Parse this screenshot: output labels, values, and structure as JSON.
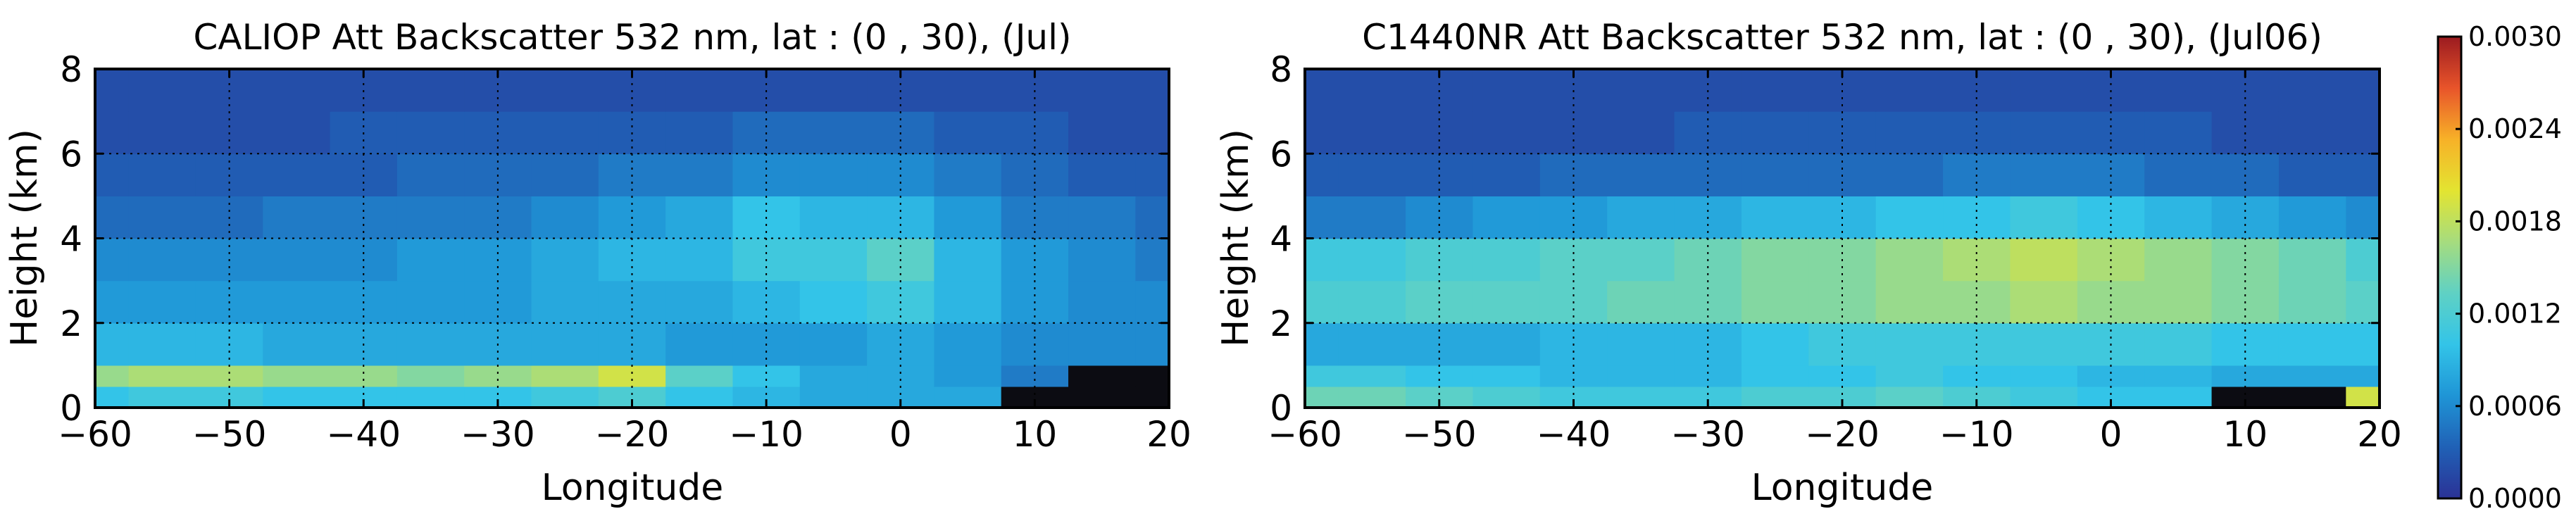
{
  "chart_data": [
    {
      "type": "heatmap",
      "title": "CALIOP Att Backscatter 532 nm, lat : (0 , 30), (Jul)",
      "xlabel": "Longitude",
      "ylabel": "Height (km)",
      "xlim": [
        -60,
        20
      ],
      "ylim": [
        0,
        8
      ],
      "xticks": [
        -60,
        -50,
        -40,
        -30,
        -20,
        -10,
        0,
        10,
        20
      ],
      "xtick_labels": [
        "−60",
        "−50",
        "−40",
        "−30",
        "−20",
        "−10",
        "0",
        "10",
        "20"
      ],
      "yticks": [
        0,
        2,
        4,
        6,
        8
      ],
      "ytick_labels": [
        "0",
        "2",
        "4",
        "6",
        "8"
      ],
      "grid": true,
      "x": [
        -60,
        -55,
        -50,
        -45,
        -40,
        -35,
        -30,
        -25,
        -20,
        -15,
        -10,
        -5,
        0,
        5,
        10,
        15,
        20
      ],
      "y": [
        0.25,
        0.75,
        1.5,
        2.5,
        3.5,
        4.5,
        5.5,
        6.5,
        7.5
      ],
      "z": [
        [
          0.001,
          0.0011,
          0.0011,
          0.001,
          0.001,
          0.001,
          0.001,
          0.0011,
          0.0012,
          0.001,
          0.0009,
          0.0008,
          0.0008,
          0.0008,
          0.0001,
          0.0001,
          0.0001
        ],
        [
          0.0016,
          0.0017,
          0.0017,
          0.0016,
          0.0016,
          0.0015,
          0.0016,
          0.0017,
          0.0019,
          0.0013,
          0.001,
          0.0008,
          0.0008,
          0.0007,
          0.0005,
          0.0001,
          0.0001
        ],
        [
          0.0009,
          0.0009,
          0.0009,
          0.0008,
          0.0008,
          0.0008,
          0.0008,
          0.0008,
          0.0008,
          0.0007,
          0.0007,
          0.0007,
          0.0008,
          0.0007,
          0.0006,
          0.0006,
          0.0006
        ],
        [
          0.0007,
          0.0007,
          0.0007,
          0.0007,
          0.0007,
          0.0007,
          0.0007,
          0.0008,
          0.0008,
          0.0008,
          0.0009,
          0.001,
          0.0011,
          0.0009,
          0.0007,
          0.0006,
          0.0006
        ],
        [
          0.0006,
          0.0006,
          0.0006,
          0.0006,
          0.0006,
          0.0007,
          0.0007,
          0.0008,
          0.0009,
          0.0009,
          0.0011,
          0.0011,
          0.0013,
          0.0009,
          0.0007,
          0.0006,
          0.0005
        ],
        [
          0.0004,
          0.0004,
          0.0004,
          0.0005,
          0.0005,
          0.0005,
          0.0005,
          0.0006,
          0.0007,
          0.0008,
          0.001,
          0.0009,
          0.0009,
          0.0007,
          0.0005,
          0.0005,
          0.0004
        ],
        [
          0.0003,
          0.0003,
          0.0003,
          0.0003,
          0.0003,
          0.0004,
          0.0004,
          0.0004,
          0.0005,
          0.0005,
          0.0006,
          0.0006,
          0.0006,
          0.0005,
          0.0004,
          0.0003,
          0.0003
        ],
        [
          0.0002,
          0.0002,
          0.0002,
          0.0002,
          0.0003,
          0.0003,
          0.0003,
          0.0003,
          0.0003,
          0.0003,
          0.0004,
          0.0004,
          0.0004,
          0.0003,
          0.0003,
          0.0002,
          0.0002
        ],
        [
          0.0002,
          0.0002,
          0.0002,
          0.0002,
          0.0002,
          0.0002,
          0.0002,
          0.0002,
          0.0002,
          0.0002,
          0.0002,
          0.0002,
          0.0002,
          0.0002,
          0.0002,
          0.0002,
          0.0002
        ]
      ]
    },
    {
      "type": "heatmap",
      "title": "C1440NR Att Backscatter 532 nm, lat : (0 , 30), (Jul06)",
      "xlabel": "Longitude",
      "ylabel": "Height (km)",
      "xlim": [
        -60,
        20
      ],
      "ylim": [
        0,
        8
      ],
      "xticks": [
        -60,
        -50,
        -40,
        -30,
        -20,
        -10,
        0,
        10,
        20
      ],
      "xtick_labels": [
        "−60",
        "−50",
        "−40",
        "−30",
        "−20",
        "−10",
        "0",
        "10",
        "20"
      ],
      "yticks": [
        0,
        2,
        4,
        6,
        8
      ],
      "ytick_labels": [
        "0",
        "2",
        "4",
        "6",
        "8"
      ],
      "grid": true,
      "x": [
        -60,
        -55,
        -50,
        -45,
        -40,
        -35,
        -30,
        -25,
        -20,
        -15,
        -10,
        -5,
        0,
        5,
        10,
        15,
        20
      ],
      "y": [
        0.25,
        0.75,
        1.5,
        2.5,
        3.5,
        4.5,
        5.5,
        6.5,
        7.5
      ],
      "z": [
        [
          0.0014,
          0.0014,
          0.0013,
          0.0012,
          0.0011,
          0.0011,
          0.0011,
          0.0012,
          0.0012,
          0.0013,
          0.0012,
          0.0011,
          0.001,
          0.001,
          0.0001,
          0.0001,
          0.0019
        ],
        [
          0.0011,
          0.0011,
          0.001,
          0.001,
          0.0009,
          0.0009,
          0.0009,
          0.001,
          0.001,
          0.0011,
          0.001,
          0.001,
          0.0009,
          0.0009,
          0.0008,
          0.0008,
          0.0008
        ],
        [
          0.0008,
          0.0008,
          0.0008,
          0.0008,
          0.0009,
          0.0009,
          0.0009,
          0.001,
          0.0011,
          0.0011,
          0.0011,
          0.0011,
          0.0011,
          0.0011,
          0.001,
          0.001,
          0.001
        ],
        [
          0.0012,
          0.0012,
          0.0013,
          0.0013,
          0.0013,
          0.0014,
          0.0014,
          0.0015,
          0.0015,
          0.0016,
          0.0016,
          0.0017,
          0.0016,
          0.0016,
          0.0015,
          0.0014,
          0.0013
        ],
        [
          0.0011,
          0.0011,
          0.0012,
          0.0012,
          0.0013,
          0.0013,
          0.0014,
          0.0015,
          0.0015,
          0.0016,
          0.0017,
          0.0018,
          0.0017,
          0.0016,
          0.0015,
          0.0014,
          0.0012
        ],
        [
          0.0005,
          0.0005,
          0.0006,
          0.0007,
          0.0007,
          0.0008,
          0.0008,
          0.0009,
          0.0009,
          0.001,
          0.001,
          0.0011,
          0.001,
          0.0009,
          0.0008,
          0.0007,
          0.0006
        ],
        [
          0.0003,
          0.0003,
          0.0003,
          0.0003,
          0.0004,
          0.0004,
          0.0004,
          0.0004,
          0.0004,
          0.0004,
          0.0005,
          0.0005,
          0.0005,
          0.0004,
          0.0004,
          0.0003,
          0.0003
        ],
        [
          0.0002,
          0.0002,
          0.0002,
          0.0002,
          0.0002,
          0.0002,
          0.0003,
          0.0003,
          0.0003,
          0.0003,
          0.0003,
          0.0003,
          0.0003,
          0.0003,
          0.0002,
          0.0002,
          0.0002
        ],
        [
          0.0002,
          0.0002,
          0.0002,
          0.0002,
          0.0002,
          0.0002,
          0.0002,
          0.0002,
          0.0002,
          0.0002,
          0.0002,
          0.0002,
          0.0002,
          0.0002,
          0.0002,
          0.0002,
          0.0002
        ]
      ]
    }
  ],
  "colorbar": {
    "range": [
      0.0,
      0.003
    ],
    "ticks": [
      0.0,
      0.0006,
      0.0012,
      0.0018,
      0.0024,
      0.003
    ],
    "tick_labels": [
      "0.0000",
      "0.0006",
      "0.0012",
      "0.0018",
      "0.0024",
      "0.0030"
    ],
    "colors": [
      "#2b3296",
      "#2061b6",
      "#1f95d6",
      "#33c4e8",
      "#5fd1c4",
      "#a6dc7e",
      "#e3e431",
      "#f7b128",
      "#e8542a",
      "#9b1b20"
    ]
  }
}
